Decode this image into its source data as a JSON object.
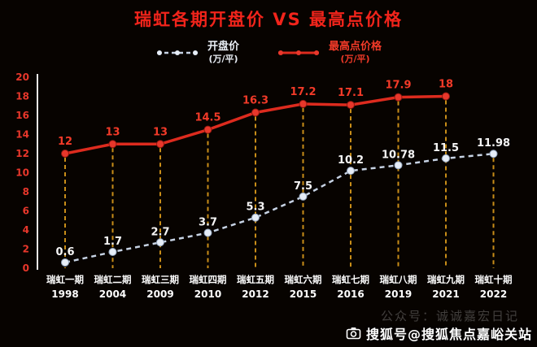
{
  "title": "瑞虹各期开盘价 VS 最高点价格",
  "legend": {
    "items": [
      {
        "label": "开盘价",
        "unit": "(万/平)"
      },
      {
        "label": "最高点价格",
        "unit": "(万/平)"
      }
    ]
  },
  "watermarks": {
    "faint": "公众号：诚诚嘉宏日记",
    "sohu": "搜狐号@搜狐焦点嘉峪关站"
  },
  "colors": {
    "background": "#070300",
    "title": "#f1241b",
    "axis": "#e8e8e8",
    "ytick": "#e8372b",
    "vline": "#c88d18",
    "xlabel": "#ffffff"
  },
  "chart_data": {
    "type": "line",
    "title": "瑞虹各期开盘价 VS 最高点价格",
    "categories": [
      "瑞虹一期",
      "瑞虹二期",
      "瑞虹三期",
      "瑞虹四期",
      "瑞虹五期",
      "瑞虹六期",
      "瑞虹七期",
      "瑞虹八期",
      "瑞虹九期",
      "瑞虹十期"
    ],
    "years": [
      "1998",
      "2004",
      "2009",
      "2010",
      "2012",
      "2015",
      "2016",
      "2019",
      "2021",
      "2022"
    ],
    "ylim": [
      0,
      20
    ],
    "ytick_step": 2,
    "grid": false,
    "legend_position": "top",
    "series": [
      {
        "name": "开盘价",
        "unit": "万/平",
        "color": "#c7d3e4",
        "marker_color": "#e6edf7",
        "label_color": "#f5f5f5",
        "dashed": true,
        "values": [
          0.6,
          1.7,
          2.7,
          3.7,
          5.3,
          7.5,
          10.2,
          10.78,
          11.5,
          11.98
        ]
      },
      {
        "name": "最高点价格",
        "unit": "万/平",
        "color": "#dd2b1e",
        "marker_color": "#e8372b",
        "label_color": "#f23a28",
        "dashed": false,
        "values": [
          12,
          13,
          13,
          14.5,
          16.3,
          17.2,
          17.1,
          17.9,
          18,
          null
        ]
      }
    ]
  }
}
